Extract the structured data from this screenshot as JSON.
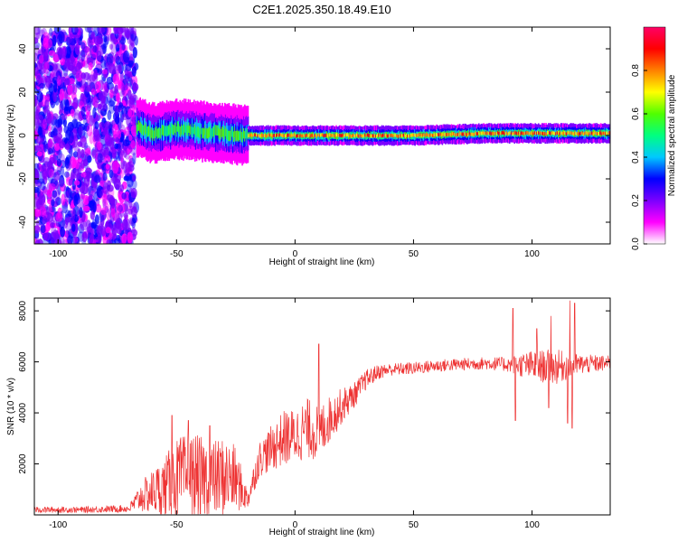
{
  "title": "C2E1.2025.350.18.49.E10",
  "chart_data": [
    {
      "type": "heatmap",
      "xlabel": "Height of straight line (km)",
      "ylabel": "Frequency (Hz)",
      "xlim": [
        -110,
        133
      ],
      "ylim": [
        -50,
        50
      ],
      "xticks": [
        -100,
        -50,
        0,
        50,
        100
      ],
      "yticks": [
        -40,
        -20,
        0,
        20,
        40
      ],
      "grid": false,
      "colorbar": {
        "label": "Normalized spectral amplitude",
        "range": [
          0,
          1
        ],
        "ticks": [
          "0.0",
          "0.2",
          "0.4",
          "0.6",
          "0.8"
        ],
        "colors": [
          "#ffffff",
          "#ff00ff",
          "#7b00ff",
          "#0000ff",
          "#00c8ff",
          "#00ff80",
          "#50ff00",
          "#ffff00",
          "#ff8000",
          "#ff0000",
          "#ff0066"
        ]
      },
      "regions": [
        {
          "x_from": -110,
          "x_to": -67,
          "description_values": {
            "amplitude": 0.15,
            "freq_spread": 50
          }
        },
        {
          "x_from": -67,
          "x_to": -20,
          "description_values": {
            "amplitude": 0.5,
            "freq_spread": 6
          }
        },
        {
          "x_from": -20,
          "x_to": 133,
          "description_values": {
            "amplitude": 0.75,
            "freq_spread": 2
          }
        }
      ],
      "peak_frequency": [
        [
          -67,
          4
        ],
        [
          -60,
          1
        ],
        [
          -50,
          3
        ],
        [
          -40,
          2
        ],
        [
          -30,
          1
        ],
        [
          -20,
          0
        ],
        [
          0,
          0
        ],
        [
          50,
          0
        ],
        [
          80,
          1
        ],
        [
          133,
          1
        ]
      ]
    },
    {
      "type": "line",
      "xlabel": "Height of straight line (km)",
      "ylabel": "SNR (10 * v/v)",
      "xlim": [
        -110,
        133
      ],
      "ylim": [
        0,
        8500
      ],
      "xticks": [
        -100,
        -50,
        0,
        50,
        100
      ],
      "yticks": [
        2000,
        4000,
        6000,
        8000
      ],
      "grid": false,
      "series": [
        {
          "color": "#ee3333",
          "envelope": [
            [
              -110,
              200,
              120
            ],
            [
              -90,
              200,
              120
            ],
            [
              -70,
              250,
              150
            ],
            [
              -65,
              700,
              600
            ],
            [
              -60,
              900,
              900
            ],
            [
              -55,
              1100,
              1200
            ],
            [
              -50,
              1400,
              1600
            ],
            [
              -45,
              1500,
              1700
            ],
            [
              -40,
              1500,
              1600
            ],
            [
              -35,
              1400,
              1500
            ],
            [
              -30,
              1500,
              1600
            ],
            [
              -25,
              1400,
              1300
            ],
            [
              -20,
              600,
              400
            ],
            [
              -15,
              2200,
              700
            ],
            [
              -10,
              2600,
              900
            ],
            [
              -5,
              3000,
              1100
            ],
            [
              0,
              3100,
              1100
            ],
            [
              5,
              3400,
              1200
            ],
            [
              10,
              3200,
              1100
            ],
            [
              15,
              3800,
              900
            ],
            [
              20,
              4300,
              700
            ],
            [
              25,
              4700,
              500
            ],
            [
              30,
              5300,
              400
            ],
            [
              35,
              5600,
              300
            ],
            [
              40,
              5700,
              250
            ],
            [
              50,
              5750,
              250
            ],
            [
              60,
              5850,
              250
            ],
            [
              70,
              5900,
              250
            ],
            [
              80,
              5950,
              250
            ],
            [
              90,
              5900,
              300
            ],
            [
              100,
              5850,
              600
            ],
            [
              110,
              5800,
              700
            ],
            [
              120,
              5900,
              400
            ],
            [
              133,
              5950,
              300
            ]
          ],
          "spikes": [
            [
              -52,
              3900
            ],
            [
              -45,
              3700
            ],
            [
              -36,
              3500
            ],
            [
              10,
              6700
            ],
            [
              -40,
              50
            ],
            [
              92,
              8100
            ],
            [
              93,
              3700
            ],
            [
              102,
              7300
            ],
            [
              107,
              4200
            ],
            [
              108,
              7800
            ],
            [
              115,
              3600
            ],
            [
              116,
              8400
            ],
            [
              117,
              3400
            ],
            [
              118,
              8300
            ]
          ]
        }
      ]
    }
  ]
}
